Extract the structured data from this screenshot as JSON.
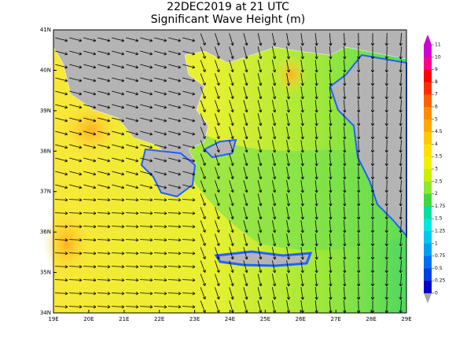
{
  "header": {
    "title": "22DEC2019 at 21 UTC",
    "subtitle": "Significant Wave Height (m)"
  },
  "map": {
    "lat_labels": [
      "41N",
      "40N",
      "39N",
      "38N",
      "37N",
      "36N",
      "35N",
      "34N"
    ],
    "lon_labels": [
      "19E",
      "20E",
      "21E",
      "22E",
      "23E",
      "24E",
      "25E",
      "26E",
      "27E",
      "28E",
      "29E"
    ]
  },
  "legend": {
    "labels": [
      "11",
      "10",
      "9",
      "8",
      "7",
      "6",
      "5",
      "4.5",
      "4",
      "3.5",
      "3",
      "2.5",
      "2",
      "1.75",
      "1.5",
      "1.25",
      "1",
      "0.75",
      "0.5",
      "0.25",
      "0"
    ],
    "colors": [
      "#d000d0",
      "#ff0090",
      "#ff0000",
      "#ff3000",
      "#ff6000",
      "#ff8c00",
      "#ffa800",
      "#ffc800",
      "#ffe000",
      "#f0f000",
      "#c8f000",
      "#90e830",
      "#40d840",
      "#00e0a0",
      "#00e8e0",
      "#00c8f0",
      "#00a0f0",
      "#0070f0",
      "#0040e0",
      "#0000c8"
    ]
  }
}
